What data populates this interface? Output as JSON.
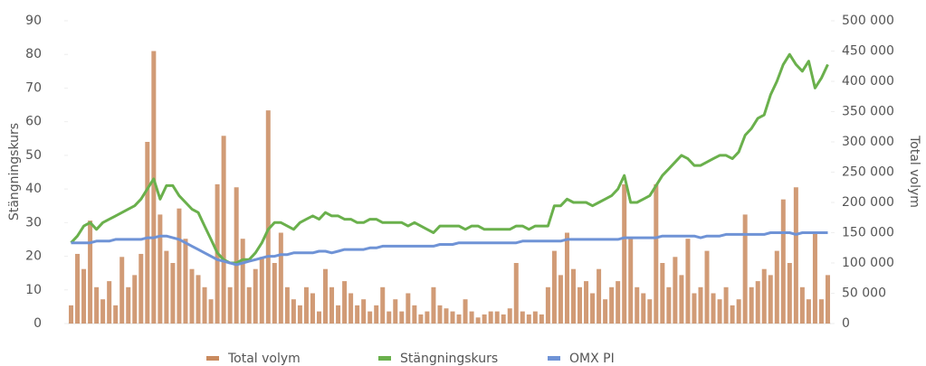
{
  "chart_data": {
    "type": "combo",
    "ylabel": "Stängningskurs",
    "y2label": "Total volym",
    "ylim": [
      0,
      90
    ],
    "yticks": [
      0,
      10,
      20,
      30,
      40,
      50,
      60,
      70,
      80,
      90
    ],
    "y2lim": [
      0,
      500000
    ],
    "y2ticks": [
      0,
      {
        "value": 50000,
        "label": "50 000"
      },
      {
        "value": 100000,
        "label": "100 000"
      },
      {
        "value": 150000,
        "label": "150 000"
      },
      {
        "value": 200000,
        "label": "200 000"
      },
      {
        "value": 250000,
        "label": "250 000"
      },
      {
        "value": 300000,
        "label": "300 000"
      },
      {
        "value": 350000,
        "label": "350 000"
      },
      {
        "value": 400000,
        "label": "400 000"
      },
      {
        "value": 450000,
        "label": "450 000"
      },
      {
        "value": 500000,
        "label": "500 000"
      }
    ],
    "categories": [
      null,
      null,
      null,
      null,
      null,
      null,
      null,
      null,
      null,
      null,
      null,
      null,
      null,
      null,
      null,
      null,
      null,
      null,
      null,
      null,
      null,
      null,
      null,
      null,
      null,
      null,
      null,
      null,
      null,
      null,
      null,
      null,
      null,
      null,
      null,
      null,
      null,
      null,
      null,
      null,
      null,
      null,
      null,
      null,
      null,
      null,
      null,
      null,
      null,
      null,
      null,
      null,
      null,
      null,
      null,
      null,
      null,
      null,
      null,
      null,
      null,
      null,
      null,
      null,
      null,
      null,
      null,
      null,
      null,
      null,
      null,
      null,
      null,
      null,
      null,
      null,
      null,
      null,
      null,
      null,
      null,
      null,
      null,
      null,
      null,
      null,
      null,
      null,
      null,
      null,
      null,
      null,
      null,
      null,
      null,
      null,
      null,
      null,
      null,
      null,
      null,
      null,
      null,
      null,
      null,
      null,
      null,
      null,
      null,
      null,
      null,
      null,
      null,
      null,
      null,
      null,
      null,
      null,
      null,
      null
    ],
    "series": [
      {
        "name": "Total volym",
        "type": "bar",
        "axis": "y2",
        "color": "#c98a5e",
        "values": [
          30000,
          115000,
          90000,
          170000,
          60000,
          40000,
          70000,
          30000,
          110000,
          60000,
          80000,
          115000,
          300000,
          450000,
          180000,
          120000,
          100000,
          190000,
          140000,
          90000,
          80000,
          60000,
          40000,
          230000,
          310000,
          60000,
          225000,
          140000,
          60000,
          90000,
          110000,
          352000,
          100000,
          150000,
          60000,
          40000,
          30000,
          60000,
          50000,
          20000,
          90000,
          60000,
          30000,
          70000,
          50000,
          30000,
          40000,
          20000,
          30000,
          60000,
          20000,
          40000,
          20000,
          50000,
          30000,
          15000,
          20000,
          60000,
          30000,
          25000,
          20000,
          15000,
          40000,
          20000,
          10000,
          15000,
          20000,
          20000,
          15000,
          25000,
          100000,
          20000,
          15000,
          20000,
          15000,
          60000,
          120000,
          80000,
          150000,
          90000,
          60000,
          70000,
          50000,
          90000,
          40000,
          60000,
          70000,
          230000,
          140000,
          60000,
          50000,
          40000,
          230000,
          100000,
          60000,
          110000,
          80000,
          140000,
          50000,
          60000,
          120000,
          50000,
          40000,
          60000,
          30000,
          40000,
          180000,
          60000,
          70000,
          90000,
          80000,
          120000,
          205000,
          100000,
          225000,
          60000,
          40000,
          150000,
          40000,
          80000
        ]
      },
      {
        "name": "Stängningskurs",
        "type": "line",
        "axis": "y",
        "color": "#6ab04c",
        "values": [
          24,
          26,
          29,
          30,
          28,
          30,
          31,
          32,
          33,
          34,
          35,
          37,
          40,
          43,
          37,
          41,
          41,
          38,
          36,
          34,
          33,
          29,
          25,
          21,
          19,
          18,
          18,
          19,
          19,
          21,
          24,
          28,
          30,
          30,
          29,
          28,
          30,
          31,
          32,
          31,
          33,
          32,
          32,
          31,
          31,
          30,
          30,
          31,
          31,
          30,
          30,
          30,
          30,
          29,
          30,
          29,
          28,
          27,
          29,
          29,
          29,
          29,
          28,
          29,
          29,
          28,
          28,
          28,
          28,
          28,
          29,
          29,
          28,
          29,
          29,
          29,
          35,
          35,
          37,
          36,
          36,
          36,
          35,
          36,
          37,
          38,
          40,
          44,
          36,
          36,
          37,
          38,
          41,
          44,
          46,
          48,
          50,
          49,
          47,
          47,
          48,
          49,
          50,
          50,
          49,
          51,
          56,
          58,
          61,
          62,
          68,
          72,
          77,
          80,
          77,
          75,
          78,
          70,
          73,
          77
        ]
      },
      {
        "name": "OMX PI",
        "type": "line",
        "axis": "y",
        "color": "#6f93d6",
        "values": [
          24,
          24,
          24,
          24,
          24.5,
          24.5,
          24.5,
          25,
          25,
          25,
          25,
          25,
          25.5,
          25.5,
          26,
          26,
          25.5,
          25,
          24,
          23,
          22,
          21,
          20,
          19,
          18.5,
          18,
          17.5,
          18,
          18.5,
          19,
          19.5,
          20,
          20,
          20.5,
          20.5,
          21,
          21,
          21,
          21,
          21.5,
          21.5,
          21,
          21.5,
          22,
          22,
          22,
          22,
          22.5,
          22.5,
          23,
          23,
          23,
          23,
          23,
          23,
          23,
          23,
          23,
          23.5,
          23.5,
          23.5,
          24,
          24,
          24,
          24,
          24,
          24,
          24,
          24,
          24,
          24,
          24.5,
          24.5,
          24.5,
          24.5,
          24.5,
          24.5,
          24.5,
          25,
          25,
          25,
          25,
          25,
          25,
          25,
          25,
          25,
          25.5,
          25.5,
          25.5,
          25.5,
          25.5,
          25.5,
          26,
          26,
          26,
          26,
          26,
          26,
          25.5,
          26,
          26,
          26,
          26.5,
          26.5,
          26.5,
          26.5,
          26.5,
          26.5,
          26.5,
          27,
          27,
          27,
          27,
          26.5,
          27,
          27,
          27,
          27,
          27
        ]
      }
    ]
  }
}
